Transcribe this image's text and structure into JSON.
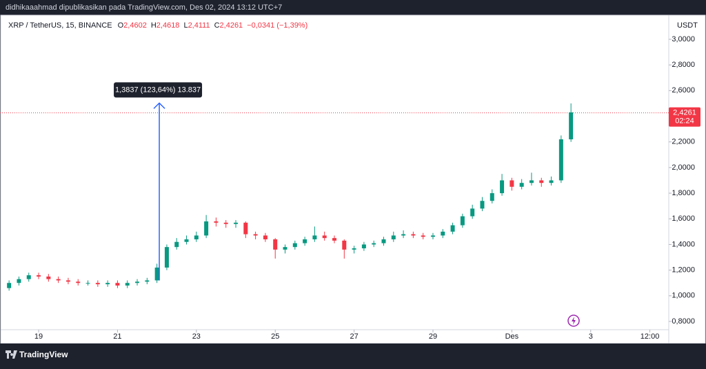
{
  "header": {
    "title": "didhikaaahmad dipublikasikan pada TradingView.com, Des 02, 2024 13:12 UTC+7"
  },
  "footer": {
    "brand": "TradingView"
  },
  "chart_data": {
    "type": "candlestick",
    "symbol": "XRP / TetherUS, 15, BINANCE",
    "ohlc_legend": [
      {
        "label": "O",
        "value": "2,4602"
      },
      {
        "label": "H",
        "value": "2,4618"
      },
      {
        "label": "L",
        "value": "2,4111"
      },
      {
        "label": "C",
        "value": "2,4261"
      }
    ],
    "change": "−0,0341 (−1,39%)",
    "y_unit": "USDT",
    "up_color": "#089981",
    "down_color": "#f23645",
    "x": [
      18.25,
      18.5,
      18.75,
      19,
      19.25,
      19.5,
      19.75,
      20,
      20.25,
      20.5,
      20.75,
      21,
      21.25,
      21.5,
      21.75,
      22,
      22.25,
      22.5,
      22.75,
      23,
      23.25,
      23.5,
      23.75,
      24,
      24.25,
      24.5,
      24.75,
      25,
      25.25,
      25.5,
      25.75,
      26,
      26.25,
      26.5,
      26.75,
      27,
      27.25,
      27.5,
      27.75,
      28,
      28.25,
      28.5,
      28.75,
      29,
      29.25,
      29.5,
      29.75,
      30,
      30.25,
      30.5,
      30.75,
      31,
      31.25,
      31.5,
      31.75,
      32,
      32.25,
      32.5
    ],
    "open": [
      1.06,
      1.1,
      1.13,
      1.16,
      1.15,
      1.13,
      1.12,
      1.11,
      1.1,
      1.1,
      1.09,
      1.1,
      1.08,
      1.1,
      1.11,
      1.12,
      1.22,
      1.38,
      1.42,
      1.44,
      1.47,
      1.58,
      1.57,
      1.56,
      1.57,
      1.48,
      1.47,
      1.44,
      1.36,
      1.38,
      1.41,
      1.44,
      1.47,
      1.45,
      1.43,
      1.36,
      1.37,
      1.4,
      1.41,
      1.44,
      1.47,
      1.48,
      1.47,
      1.46,
      1.47,
      1.5,
      1.55,
      1.62,
      1.68,
      1.74,
      1.8,
      1.9,
      1.85,
      1.88,
      1.9,
      1.88,
      1.9,
      2.22
    ],
    "high": [
      1.12,
      1.15,
      1.18,
      1.18,
      1.17,
      1.15,
      1.14,
      1.13,
      1.12,
      1.12,
      1.12,
      1.12,
      1.12,
      1.13,
      1.14,
      1.25,
      1.4,
      1.45,
      1.47,
      1.5,
      1.63,
      1.61,
      1.59,
      1.59,
      1.58,
      1.5,
      1.49,
      1.45,
      1.4,
      1.43,
      1.46,
      1.54,
      1.5,
      1.47,
      1.44,
      1.39,
      1.42,
      1.43,
      1.46,
      1.5,
      1.51,
      1.5,
      1.49,
      1.49,
      1.52,
      1.57,
      1.64,
      1.71,
      1.77,
      1.83,
      1.95,
      1.92,
      1.91,
      1.96,
      1.92,
      1.93,
      2.25,
      2.5
    ],
    "low": [
      1.04,
      1.08,
      1.11,
      1.13,
      1.11,
      1.1,
      1.09,
      1.08,
      1.08,
      1.07,
      1.07,
      1.06,
      1.06,
      1.08,
      1.09,
      1.1,
      1.2,
      1.36,
      1.4,
      1.42,
      1.45,
      1.54,
      1.53,
      1.53,
      1.45,
      1.44,
      1.42,
      1.29,
      1.33,
      1.36,
      1.39,
      1.42,
      1.43,
      1.41,
      1.29,
      1.33,
      1.35,
      1.38,
      1.39,
      1.42,
      1.45,
      1.45,
      1.44,
      1.44,
      1.45,
      1.48,
      1.53,
      1.6,
      1.66,
      1.72,
      1.78,
      1.82,
      1.83,
      1.86,
      1.85,
      1.86,
      1.88,
      2.2
    ],
    "close": [
      1.1,
      1.13,
      1.16,
      1.15,
      1.13,
      1.12,
      1.11,
      1.1,
      1.1,
      1.09,
      1.1,
      1.08,
      1.1,
      1.11,
      1.12,
      1.22,
      1.38,
      1.42,
      1.44,
      1.47,
      1.58,
      1.57,
      1.56,
      1.57,
      1.48,
      1.47,
      1.44,
      1.36,
      1.38,
      1.41,
      1.44,
      1.47,
      1.45,
      1.43,
      1.36,
      1.37,
      1.4,
      1.41,
      1.44,
      1.47,
      1.48,
      1.47,
      1.46,
      1.47,
      1.5,
      1.55,
      1.62,
      1.68,
      1.74,
      1.8,
      1.9,
      1.85,
      1.88,
      1.9,
      1.88,
      1.9,
      2.22,
      2.43
    ],
    "xlim": [
      18.02,
      34.98
    ],
    "xticks": [
      19,
      21,
      23,
      25,
      27,
      29,
      {
        "value": 31,
        "label": "Des"
      },
      {
        "value": 33,
        "label": "3"
      },
      {
        "value": 34.5,
        "label": "12:00"
      }
    ],
    "ylim": [
      0.628,
      3.188
    ],
    "yticks": [
      {
        "value": 0.8,
        "label": "0,8000"
      },
      {
        "value": 1.0,
        "label": "1,0000"
      },
      {
        "value": 1.2,
        "label": "1,2000"
      },
      {
        "value": 1.4,
        "label": "1,4000"
      },
      {
        "value": 1.6,
        "label": "1,6000"
      },
      {
        "value": 1.8,
        "label": "1,8000"
      },
      {
        "value": 2.0,
        "label": "2,0000"
      },
      {
        "value": 2.2,
        "label": "2,2000"
      },
      {
        "value": 2.4,
        "label": "2,4000"
      },
      {
        "value": 2.6,
        "label": "2,6000"
      },
      {
        "value": 2.8,
        "label": "2,8000"
      },
      {
        "value": 3.0,
        "label": "3,0000"
      }
    ],
    "last_price": {
      "value": 2.4261,
      "label": "2,4261",
      "countdown": "02:24"
    },
    "measure": {
      "label": "1,3837 (123,64%) 13.837",
      "x": 22.06,
      "from": 1.1191,
      "to": 2.5028
    }
  }
}
